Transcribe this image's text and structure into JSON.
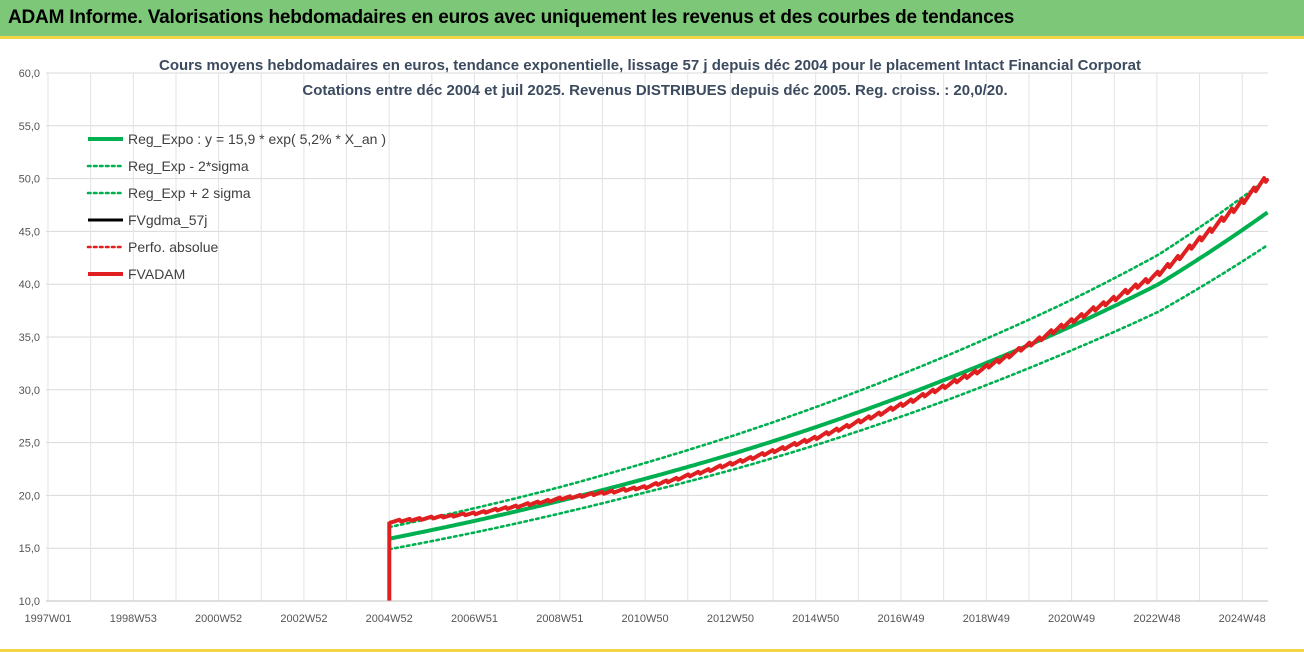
{
  "header": {
    "title": "ADAM Informe. Valorisations hebdomadaires en euros avec uniquement les revenus et des courbes de tendances"
  },
  "chart_data": {
    "type": "line",
    "title": "Cours moyens hebdomadaires en euros, tendance exponentielle, lissage 57 j depuis déc 2004 pour le placement Intact Financial Corporat",
    "subtitle": "Cotations entre déc 2004 et juil 2025. Revenus DISTRIBUES depuis déc 2005. Reg. croiss. : 20,0/20.",
    "xlabel": "",
    "ylabel": "",
    "ylim": [
      10,
      60
    ],
    "yticks": [
      "10,0",
      "15,0",
      "20,0",
      "25,0",
      "30,0",
      "35,0",
      "40,0",
      "45,0",
      "50,0",
      "55,0",
      "60,0"
    ],
    "xticks": [
      "1997W01",
      "1998W53",
      "2000W52",
      "2002W52",
      "2004W52",
      "2006W51",
      "2008W51",
      "2010W50",
      "2012W50",
      "2014W50",
      "2016W49",
      "2018W49",
      "2020W49",
      "2022W48",
      "2024W48"
    ],
    "x_years": [
      2004.99,
      2007,
      2009,
      2011,
      2013,
      2015,
      2017,
      2019,
      2021,
      2023,
      2025.55
    ],
    "grid": true,
    "legend_position": "top-left",
    "series": [
      {
        "name": "Reg_Expo : y = 15,9 * exp( 5,2% *  X_an )",
        "color": "#00b050",
        "style": "solid",
        "values": [
          15.9,
          17.6,
          19.5,
          21.6,
          23.9,
          26.5,
          29.4,
          32.6,
          36.1,
          40.0,
          46.8
        ]
      },
      {
        "name": "Reg_Exp - 2*sigma",
        "color": "#00b050",
        "style": "dotted",
        "values": [
          14.9,
          16.5,
          18.3,
          20.3,
          22.4,
          24.8,
          27.5,
          30.5,
          33.8,
          37.4,
          43.7
        ]
      },
      {
        "name": "Reg_Exp + 2 sigma",
        "color": "#00b050",
        "style": "dotted",
        "values": [
          17.0,
          18.8,
          20.8,
          23.1,
          25.6,
          28.4,
          31.5,
          34.9,
          38.6,
          42.8,
          50.0
        ]
      },
      {
        "name": "FVgdma_57j",
        "color": "#000000",
        "style": "solid",
        "values": [
          17.5,
          18.3,
          19.7,
          20.8,
          23.0,
          25.5,
          28.6,
          32.2,
          36.6,
          41.0,
          50.1
        ]
      },
      {
        "name": "Perfo. absolue",
        "color": "#e02020",
        "style": "dotted",
        "values": [
          17.5,
          18.3,
          19.7,
          20.8,
          23.0,
          25.5,
          28.6,
          32.2,
          36.6,
          41.0,
          50.1
        ]
      },
      {
        "name": "FVADAM",
        "color": "#e02020",
        "style": "solid",
        "values": [
          17.5,
          18.3,
          19.7,
          20.8,
          23.0,
          25.5,
          28.6,
          32.2,
          36.6,
          41.0,
          50.1
        ]
      }
    ]
  }
}
